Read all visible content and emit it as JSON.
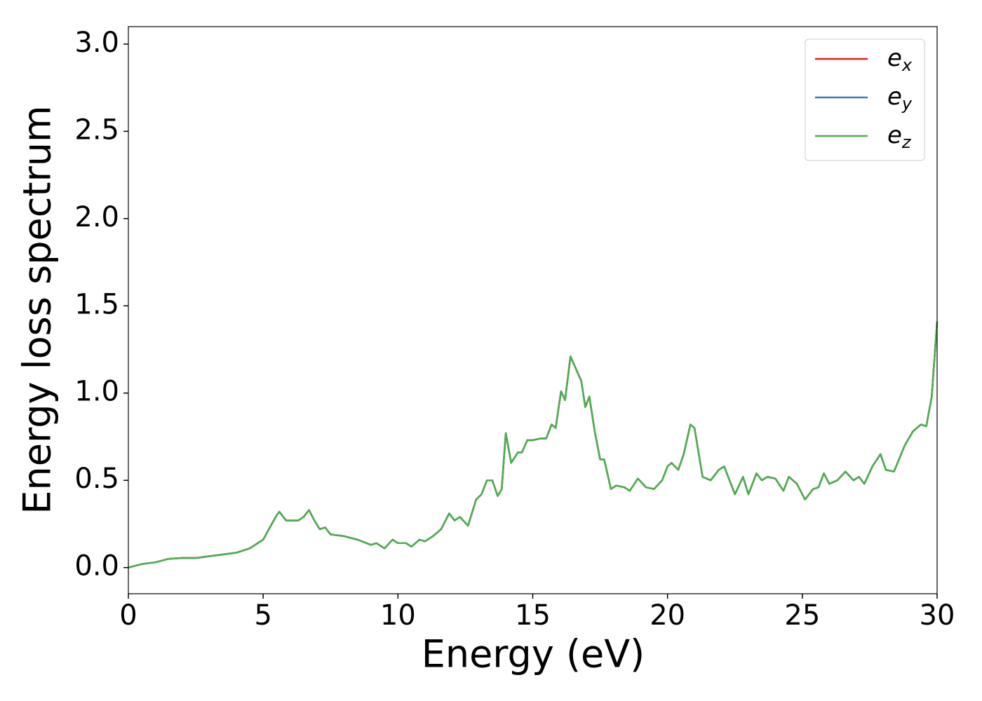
{
  "chart_data": {
    "type": "line",
    "xlabel": "Energy (eV)",
    "ylabel": "Energy loss spectrum",
    "x": [
      0,
      0.5,
      1,
      1.5,
      2,
      2.5,
      3,
      3.5,
      4,
      4.5,
      5,
      5.25,
      5.5,
      5.6,
      5.85,
      6.1,
      6.3,
      6.5,
      6.7,
      6.9,
      7.1,
      7.3,
      7.5,
      8,
      8.5,
      9,
      9.2,
      9.5,
      9.8,
      10,
      10.3,
      10.5,
      10.8,
      11,
      11.3,
      11.6,
      11.9,
      12.1,
      12.3,
      12.6,
      12.9,
      13.1,
      13.3,
      13.5,
      13.7,
      13.85,
      14.0,
      14.2,
      14.45,
      14.6,
      14.8,
      15,
      15.3,
      15.5,
      15.7,
      15.85,
      16.05,
      16.2,
      16.4,
      16.6,
      16.8,
      16.95,
      17.1,
      17.3,
      17.5,
      17.65,
      17.9,
      18.1,
      18.4,
      18.6,
      18.9,
      19.2,
      19.5,
      19.8,
      20.0,
      20.15,
      20.4,
      20.6,
      20.85,
      21.0,
      21.3,
      21.6,
      21.9,
      22.1,
      22.3,
      22.5,
      22.8,
      23.0,
      23.3,
      23.5,
      23.7,
      24.0,
      24.3,
      24.5,
      24.8,
      25.1,
      25.4,
      25.6,
      25.8,
      26.0,
      26.3,
      26.6,
      26.9,
      27.1,
      27.3,
      27.6,
      27.9,
      28.1,
      28.4,
      28.8,
      29.1,
      29.4,
      29.6,
      29.8,
      30
    ],
    "series": [
      {
        "name": "ex",
        "color": "#e41a1c",
        "values": [
          0.0,
          0.02,
          0.03,
          0.05,
          0.055,
          0.055,
          0.065,
          0.075,
          0.085,
          0.11,
          0.16,
          0.23,
          0.3,
          0.32,
          0.27,
          0.27,
          0.27,
          0.29,
          0.33,
          0.27,
          0.22,
          0.23,
          0.19,
          0.18,
          0.16,
          0.13,
          0.14,
          0.11,
          0.16,
          0.14,
          0.14,
          0.12,
          0.16,
          0.15,
          0.18,
          0.22,
          0.31,
          0.27,
          0.29,
          0.24,
          0.39,
          0.42,
          0.5,
          0.5,
          0.41,
          0.45,
          0.77,
          0.6,
          0.66,
          0.66,
          0.73,
          0.73,
          0.74,
          0.74,
          0.82,
          0.8,
          1.01,
          0.96,
          1.21,
          1.14,
          1.07,
          0.92,
          0.98,
          0.78,
          0.62,
          0.62,
          0.45,
          0.47,
          0.46,
          0.44,
          0.51,
          0.46,
          0.45,
          0.5,
          0.58,
          0.6,
          0.56,
          0.65,
          0.82,
          0.8,
          0.52,
          0.5,
          0.56,
          0.58,
          0.5,
          0.42,
          0.52,
          0.42,
          0.54,
          0.5,
          0.52,
          0.51,
          0.44,
          0.52,
          0.48,
          0.39,
          0.45,
          0.46,
          0.54,
          0.48,
          0.5,
          0.55,
          0.5,
          0.52,
          0.48,
          0.58,
          0.65,
          0.56,
          0.55,
          0.7,
          0.78,
          0.82,
          0.81,
          0.98,
          1.41
        ]
      },
      {
        "name": "ey",
        "color": "#377eb8",
        "values": [
          0.0,
          0.02,
          0.03,
          0.05,
          0.055,
          0.055,
          0.065,
          0.075,
          0.085,
          0.11,
          0.16,
          0.23,
          0.3,
          0.32,
          0.27,
          0.27,
          0.27,
          0.29,
          0.33,
          0.27,
          0.22,
          0.23,
          0.19,
          0.18,
          0.16,
          0.13,
          0.14,
          0.11,
          0.16,
          0.14,
          0.14,
          0.12,
          0.16,
          0.15,
          0.18,
          0.22,
          0.31,
          0.27,
          0.29,
          0.24,
          0.39,
          0.42,
          0.5,
          0.5,
          0.41,
          0.45,
          0.77,
          0.6,
          0.66,
          0.66,
          0.73,
          0.73,
          0.74,
          0.74,
          0.82,
          0.8,
          1.01,
          0.96,
          1.21,
          1.14,
          1.07,
          0.92,
          0.98,
          0.78,
          0.62,
          0.62,
          0.45,
          0.47,
          0.46,
          0.44,
          0.51,
          0.46,
          0.45,
          0.5,
          0.58,
          0.6,
          0.56,
          0.65,
          0.82,
          0.8,
          0.52,
          0.5,
          0.56,
          0.58,
          0.5,
          0.42,
          0.52,
          0.42,
          0.54,
          0.5,
          0.52,
          0.51,
          0.44,
          0.52,
          0.48,
          0.39,
          0.45,
          0.46,
          0.54,
          0.48,
          0.5,
          0.55,
          0.5,
          0.52,
          0.48,
          0.58,
          0.65,
          0.56,
          0.55,
          0.7,
          0.78,
          0.82,
          0.81,
          0.98,
          1.41
        ]
      },
      {
        "name": "ez",
        "color": "#4daf4a",
        "values": [
          0.0,
          0.02,
          0.03,
          0.05,
          0.055,
          0.055,
          0.065,
          0.075,
          0.085,
          0.11,
          0.16,
          0.23,
          0.3,
          0.32,
          0.27,
          0.27,
          0.27,
          0.29,
          0.33,
          0.27,
          0.22,
          0.23,
          0.19,
          0.18,
          0.16,
          0.13,
          0.14,
          0.11,
          0.16,
          0.14,
          0.14,
          0.12,
          0.16,
          0.15,
          0.18,
          0.22,
          0.31,
          0.27,
          0.29,
          0.24,
          0.39,
          0.42,
          0.5,
          0.5,
          0.41,
          0.45,
          0.77,
          0.6,
          0.66,
          0.66,
          0.73,
          0.73,
          0.74,
          0.74,
          0.82,
          0.8,
          1.01,
          0.96,
          1.21,
          1.14,
          1.07,
          0.92,
          0.98,
          0.78,
          0.62,
          0.62,
          0.45,
          0.47,
          0.46,
          0.44,
          0.51,
          0.46,
          0.45,
          0.5,
          0.58,
          0.6,
          0.56,
          0.65,
          0.82,
          0.8,
          0.52,
          0.5,
          0.56,
          0.58,
          0.5,
          0.42,
          0.52,
          0.42,
          0.54,
          0.5,
          0.52,
          0.51,
          0.44,
          0.52,
          0.48,
          0.39,
          0.45,
          0.46,
          0.54,
          0.48,
          0.5,
          0.55,
          0.5,
          0.52,
          0.48,
          0.58,
          0.65,
          0.56,
          0.55,
          0.7,
          0.78,
          0.82,
          0.81,
          0.98,
          1.41
        ]
      }
    ],
    "xlim": [
      0,
      30
    ],
    "xticks": [
      0,
      5,
      10,
      15,
      20,
      25,
      30
    ],
    "ylim": [
      -0.15,
      3.1
    ],
    "yticks": [
      {
        "value": 0,
        "label": "0.0"
      },
      {
        "value": 0.5,
        "label": "0.5"
      },
      {
        "value": 1,
        "label": "1.0"
      },
      {
        "value": 1.5,
        "label": "1.5"
      },
      {
        "value": 2,
        "label": "2.0"
      },
      {
        "value": 2.5,
        "label": "2.5"
      },
      {
        "value": 3,
        "label": "3.0"
      }
    ],
    "grid": false,
    "legend": "upper right"
  }
}
